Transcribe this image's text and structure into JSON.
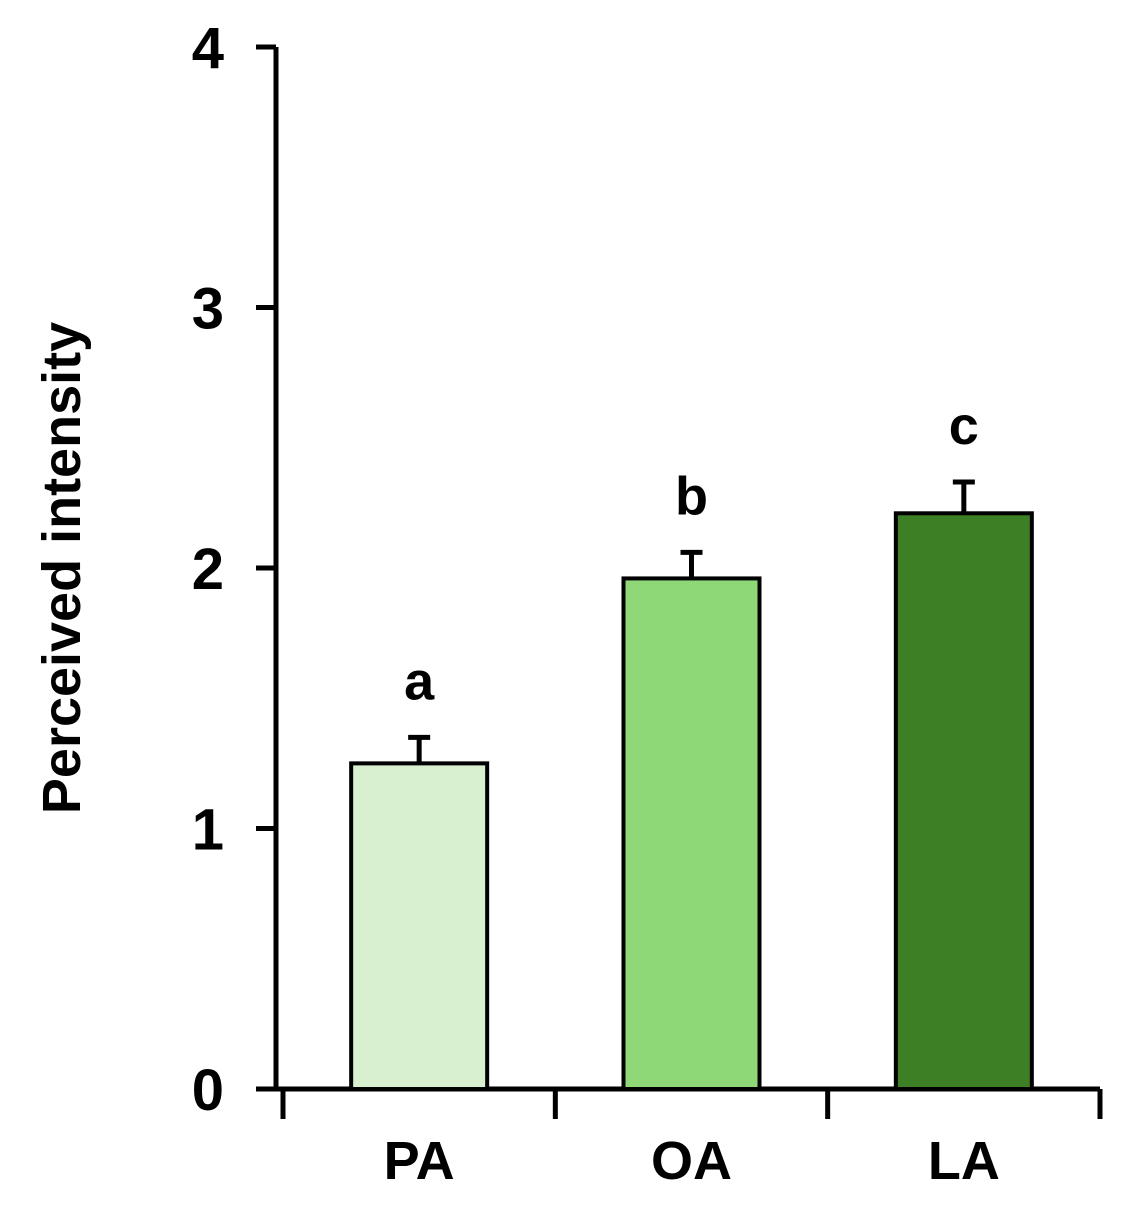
{
  "chart_data": {
    "type": "bar",
    "categories": [
      "PA",
      "OA",
      "LA"
    ],
    "values": [
      1.25,
      1.96,
      2.21
    ],
    "error": [
      0.1,
      0.1,
      0.12
    ],
    "significance_labels": [
      "a",
      "b",
      "c"
    ],
    "bar_colors": [
      "#d8f0d0",
      "#8fd878",
      "#3d7f24"
    ],
    "title": "",
    "xlabel": "",
    "ylabel": "Perceived intensity",
    "ylim": [
      0,
      4
    ],
    "yticks": [
      "0",
      "1",
      "2",
      "3",
      "4"
    ],
    "grid": false,
    "legend": "none"
  }
}
